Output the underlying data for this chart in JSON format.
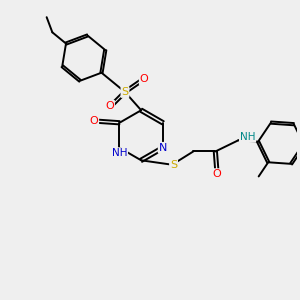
{
  "background_color": "#efefef",
  "bond_color": "#000000",
  "bond_width": 1.4,
  "atom_colors": {
    "C": "#000000",
    "N": "#0000cc",
    "O": "#ff0000",
    "S": "#ccaa00",
    "H": "#008888"
  },
  "figsize": [
    3.0,
    3.0
  ],
  "dpi": 100
}
